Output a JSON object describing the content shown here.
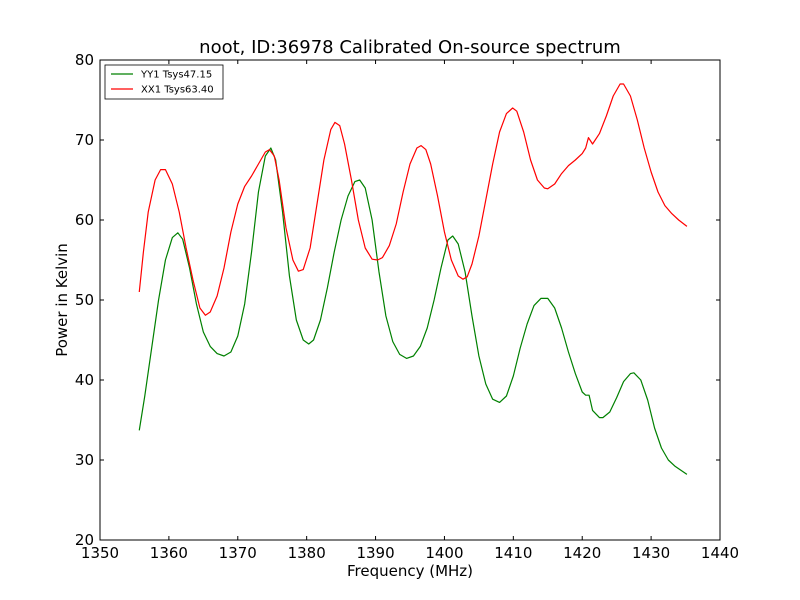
{
  "chart_data": {
    "type": "line",
    "title": "noot, ID:36978 Calibrated On-source spectrum",
    "xlabel": "Frequency (MHz)",
    "ylabel": "Power in Kelvin",
    "xlim": [
      1350,
      1440
    ],
    "ylim": [
      20,
      80
    ],
    "xticks": [
      1350,
      1360,
      1370,
      1380,
      1390,
      1400,
      1410,
      1420,
      1430,
      1440
    ],
    "yticks": [
      20,
      30,
      40,
      50,
      60,
      70,
      80
    ],
    "grid": false,
    "legend_position": "top-left",
    "series": [
      {
        "name": "YY1 Tsys47.15",
        "color": "#008000",
        "points": [
          [
            1355.7,
            33.7
          ],
          [
            1356.5,
            38.0
          ],
          [
            1357.5,
            44.0
          ],
          [
            1358.5,
            50.0
          ],
          [
            1359.5,
            55.0
          ],
          [
            1360.5,
            57.8
          ],
          [
            1361.3,
            58.4
          ],
          [
            1362.0,
            57.6
          ],
          [
            1363.0,
            54.0
          ],
          [
            1364.0,
            49.5
          ],
          [
            1365.0,
            46.0
          ],
          [
            1366.0,
            44.2
          ],
          [
            1367.0,
            43.3
          ],
          [
            1368.0,
            43.0
          ],
          [
            1369.0,
            43.5
          ],
          [
            1370.0,
            45.5
          ],
          [
            1371.0,
            49.5
          ],
          [
            1372.0,
            56.0
          ],
          [
            1373.0,
            63.5
          ],
          [
            1374.0,
            68.0
          ],
          [
            1374.8,
            69.0
          ],
          [
            1375.5,
            67.5
          ],
          [
            1376.5,
            61.0
          ],
          [
            1377.5,
            53.0
          ],
          [
            1378.5,
            47.5
          ],
          [
            1379.5,
            45.0
          ],
          [
            1380.3,
            44.5
          ],
          [
            1381.0,
            45.0
          ],
          [
            1382.0,
            47.5
          ],
          [
            1383.0,
            51.5
          ],
          [
            1384.0,
            56.0
          ],
          [
            1385.0,
            60.0
          ],
          [
            1386.0,
            63.0
          ],
          [
            1387.0,
            64.8
          ],
          [
            1387.7,
            65.0
          ],
          [
            1388.5,
            64.0
          ],
          [
            1389.5,
            60.0
          ],
          [
            1390.5,
            53.5
          ],
          [
            1391.5,
            48.0
          ],
          [
            1392.5,
            44.8
          ],
          [
            1393.5,
            43.2
          ],
          [
            1394.5,
            42.7
          ],
          [
            1395.5,
            43.0
          ],
          [
            1396.5,
            44.2
          ],
          [
            1397.5,
            46.5
          ],
          [
            1398.5,
            50.0
          ],
          [
            1399.5,
            54.0
          ],
          [
            1400.5,
            57.5
          ],
          [
            1401.2,
            58.0
          ],
          [
            1402.0,
            57.0
          ],
          [
            1403.0,
            53.5
          ],
          [
            1404.0,
            48.0
          ],
          [
            1405.0,
            43.0
          ],
          [
            1406.0,
            39.5
          ],
          [
            1407.0,
            37.6
          ],
          [
            1408.0,
            37.2
          ],
          [
            1409.0,
            38.0
          ],
          [
            1410.0,
            40.5
          ],
          [
            1411.0,
            44.0
          ],
          [
            1412.0,
            47.0
          ],
          [
            1413.0,
            49.3
          ],
          [
            1414.0,
            50.2
          ],
          [
            1415.0,
            50.2
          ],
          [
            1416.0,
            49.0
          ],
          [
            1417.0,
            46.5
          ],
          [
            1418.0,
            43.5
          ],
          [
            1419.0,
            40.8
          ],
          [
            1420.0,
            38.5
          ],
          [
            1420.5,
            38.1
          ],
          [
            1421.0,
            38.1
          ],
          [
            1421.5,
            36.2
          ],
          [
            1422.5,
            35.3
          ],
          [
            1423.0,
            35.3
          ],
          [
            1424.0,
            36.0
          ],
          [
            1425.0,
            37.8
          ],
          [
            1426.0,
            39.8
          ],
          [
            1427.0,
            40.8
          ],
          [
            1427.5,
            40.9
          ],
          [
            1428.5,
            40.0
          ],
          [
            1429.5,
            37.5
          ],
          [
            1430.5,
            34.0
          ],
          [
            1431.5,
            31.5
          ],
          [
            1432.5,
            30.0
          ],
          [
            1433.5,
            29.2
          ],
          [
            1435.2,
            28.2
          ]
        ]
      },
      {
        "name": "XX1 Tsys63.40",
        "color": "#ff0000",
        "points": [
          [
            1355.7,
            51.0
          ],
          [
            1356.3,
            56.0
          ],
          [
            1357.0,
            61.0
          ],
          [
            1358.0,
            65.0
          ],
          [
            1358.8,
            66.3
          ],
          [
            1359.5,
            66.3
          ],
          [
            1360.5,
            64.5
          ],
          [
            1361.5,
            61.0
          ],
          [
            1362.5,
            56.5
          ],
          [
            1363.5,
            52.5
          ],
          [
            1364.5,
            49.0
          ],
          [
            1365.3,
            48.1
          ],
          [
            1366.0,
            48.5
          ],
          [
            1367.0,
            50.5
          ],
          [
            1368.0,
            54.0
          ],
          [
            1369.0,
            58.5
          ],
          [
            1370.0,
            62.0
          ],
          [
            1371.0,
            64.2
          ],
          [
            1372.0,
            65.5
          ],
          [
            1373.0,
            67.0
          ],
          [
            1374.0,
            68.5
          ],
          [
            1374.6,
            68.8
          ],
          [
            1375.3,
            68.0
          ],
          [
            1376.0,
            65.0
          ],
          [
            1377.0,
            59.0
          ],
          [
            1378.0,
            55.0
          ],
          [
            1378.8,
            53.6
          ],
          [
            1379.5,
            53.8
          ],
          [
            1380.5,
            56.5
          ],
          [
            1381.5,
            62.0
          ],
          [
            1382.5,
            67.5
          ],
          [
            1383.5,
            71.3
          ],
          [
            1384.1,
            72.2
          ],
          [
            1384.8,
            71.8
          ],
          [
            1385.5,
            69.5
          ],
          [
            1386.5,
            65.0
          ],
          [
            1387.5,
            60.0
          ],
          [
            1388.5,
            56.5
          ],
          [
            1389.5,
            55.1
          ],
          [
            1390.3,
            55.0
          ],
          [
            1391.0,
            55.3
          ],
          [
            1392.0,
            56.8
          ],
          [
            1393.0,
            59.5
          ],
          [
            1394.0,
            63.5
          ],
          [
            1395.0,
            67.0
          ],
          [
            1396.0,
            69.0
          ],
          [
            1396.6,
            69.3
          ],
          [
            1397.3,
            68.8
          ],
          [
            1398.0,
            67.0
          ],
          [
            1399.0,
            63.0
          ],
          [
            1400.0,
            58.5
          ],
          [
            1401.0,
            55.0
          ],
          [
            1402.0,
            53.0
          ],
          [
            1402.7,
            52.6
          ],
          [
            1403.3,
            52.9
          ],
          [
            1404.0,
            54.5
          ],
          [
            1405.0,
            58.0
          ],
          [
            1406.0,
            62.5
          ],
          [
            1407.0,
            67.0
          ],
          [
            1408.0,
            71.0
          ],
          [
            1409.0,
            73.3
          ],
          [
            1409.9,
            74.0
          ],
          [
            1410.5,
            73.6
          ],
          [
            1411.5,
            71.0
          ],
          [
            1412.5,
            67.5
          ],
          [
            1413.5,
            65.0
          ],
          [
            1414.5,
            64.0
          ],
          [
            1415.0,
            63.9
          ],
          [
            1416.0,
            64.5
          ],
          [
            1417.0,
            65.8
          ],
          [
            1418.0,
            66.8
          ],
          [
            1419.0,
            67.5
          ],
          [
            1420.0,
            68.3
          ],
          [
            1420.5,
            69.0
          ],
          [
            1420.9,
            70.3
          ],
          [
            1421.5,
            69.5
          ],
          [
            1422.5,
            70.8
          ],
          [
            1423.5,
            73.0
          ],
          [
            1424.5,
            75.5
          ],
          [
            1425.5,
            77.0
          ],
          [
            1426.0,
            77.0
          ],
          [
            1427.0,
            75.5
          ],
          [
            1428.0,
            72.5
          ],
          [
            1429.0,
            69.0
          ],
          [
            1430.0,
            66.0
          ],
          [
            1431.0,
            63.5
          ],
          [
            1432.0,
            61.8
          ],
          [
            1433.0,
            60.8
          ],
          [
            1434.0,
            60.0
          ],
          [
            1435.2,
            59.2
          ]
        ]
      }
    ]
  }
}
